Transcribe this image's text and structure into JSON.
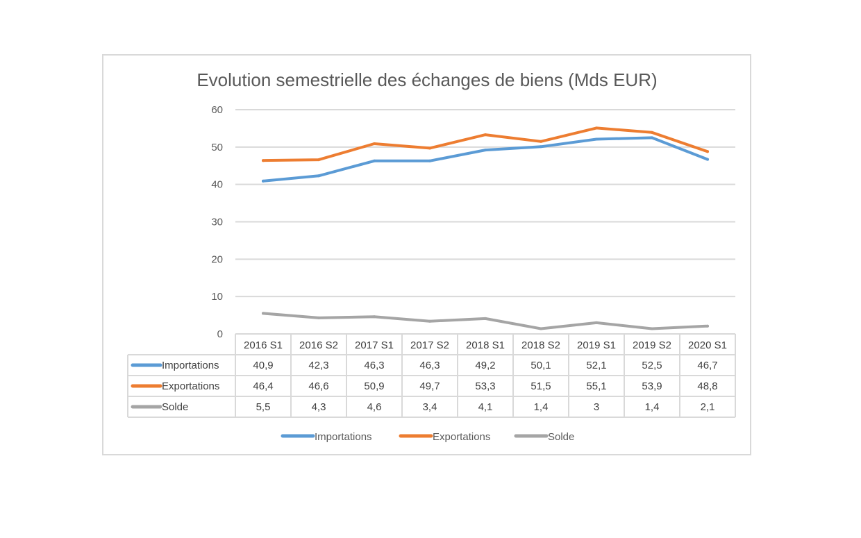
{
  "chart_data": {
    "type": "line",
    "title": "Evolution semestrielle des échanges de biens (Mds EUR)",
    "categories": [
      "2016 S1",
      "2016 S2",
      "2017 S1",
      "2017 S2",
      "2018 S1",
      "2018 S2",
      "2019 S1",
      "2019 S2",
      "2020 S1"
    ],
    "ylim": [
      0,
      60
    ],
    "yticks": [
      0,
      10,
      20,
      30,
      40,
      50,
      60
    ],
    "grid": true,
    "legend_position": "bottom",
    "series": [
      {
        "name": "Importations",
        "color": "#5b9bd5",
        "values": [
          40.9,
          42.3,
          46.3,
          46.3,
          49.2,
          50.1,
          52.1,
          52.5,
          46.7
        ],
        "labels": [
          "40,9",
          "42,3",
          "46,3",
          "46,3",
          "49,2",
          "50,1",
          "52,1",
          "52,5",
          "46,7"
        ]
      },
      {
        "name": "Exportations",
        "color": "#ed7d31",
        "values": [
          46.4,
          46.6,
          50.9,
          49.7,
          53.3,
          51.5,
          55.1,
          53.9,
          48.8
        ],
        "labels": [
          "46,4",
          "46,6",
          "50,9",
          "49,7",
          "53,3",
          "51,5",
          "55,1",
          "53,9",
          "48,8"
        ]
      },
      {
        "name": "Solde",
        "color": "#a5a5a5",
        "values": [
          5.5,
          4.3,
          4.6,
          3.4,
          4.1,
          1.4,
          3,
          1.4,
          2.1
        ],
        "labels": [
          "5,5",
          "4,3",
          "4,6",
          "3,4",
          "4,1",
          "1,4",
          "3",
          "1,4",
          "2,1"
        ]
      }
    ]
  }
}
